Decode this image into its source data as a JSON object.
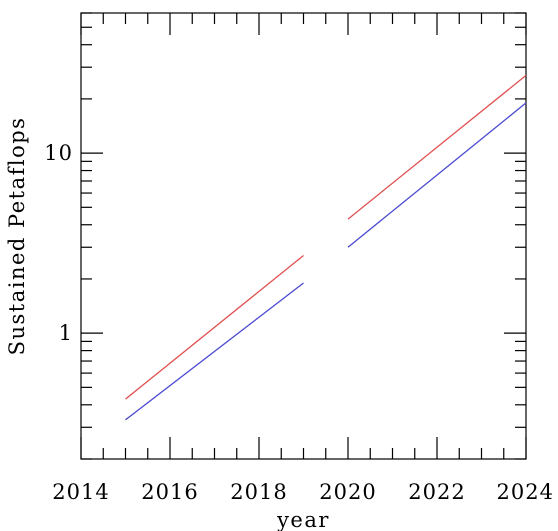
{
  "chart_data": {
    "type": "line",
    "xlabel": "year",
    "ylabel": "Sustained Petaflops",
    "xlim": [
      2014,
      2024
    ],
    "ylim": [
      0.2,
      60
    ],
    "yscale": "log",
    "x_ticks": [
      "2014",
      "2016",
      "2018",
      "2020",
      "2022",
      "2024"
    ],
    "y_ticks": [
      "1",
      "10"
    ],
    "grid": false,
    "legend": "none",
    "series": [
      {
        "color": "#e05050",
        "segments": [
          {
            "x": [
              2015,
              2019
            ],
            "y": [
              0.43,
              2.7
            ]
          },
          {
            "x": [
              2020,
              2024
            ],
            "y": [
              4.3,
              27
            ]
          }
        ]
      },
      {
        "color": "#4a4ad0",
        "segments": [
          {
            "x": [
              2015,
              2019
            ],
            "y": [
              0.33,
              1.9
            ]
          },
          {
            "x": [
              2020,
              2024
            ],
            "y": [
              3.0,
              19
            ]
          }
        ]
      }
    ]
  }
}
